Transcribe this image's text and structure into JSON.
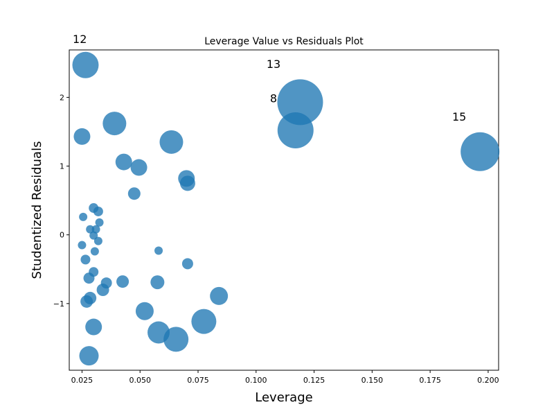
{
  "chart_data": {
    "type": "scatter",
    "title": "Leverage Value vs Residuals Plot",
    "xlabel": "Leverage",
    "ylabel": "Studentized Residuals",
    "xlim": [
      0.0195,
      0.2045
    ],
    "ylim": [
      -1.97,
      2.69
    ],
    "xticks": [
      "0.025",
      "0.050",
      "0.075",
      "0.100",
      "0.125",
      "0.150",
      "0.175",
      "0.200"
    ],
    "yticks": [
      "−1",
      "0",
      "1",
      "2"
    ],
    "marker_color": "#1f77b4",
    "size_encoding": "marker area proportional to influence",
    "points": [
      {
        "x": 0.0265,
        "y": 2.47,
        "s": 19
      },
      {
        "x": 0.119,
        "y": 1.93,
        "s": 33
      },
      {
        "x": 0.117,
        "y": 1.52,
        "s": 26
      },
      {
        "x": 0.1965,
        "y": 1.21,
        "s": 28
      },
      {
        "x": 0.039,
        "y": 1.62,
        "s": 17
      },
      {
        "x": 0.025,
        "y": 1.43,
        "s": 12
      },
      {
        "x": 0.0635,
        "y": 1.35,
        "s": 17
      },
      {
        "x": 0.043,
        "y": 1.06,
        "s": 12
      },
      {
        "x": 0.0495,
        "y": 0.98,
        "s": 12
      },
      {
        "x": 0.07,
        "y": 0.82,
        "s": 12
      },
      {
        "x": 0.0705,
        "y": 0.75,
        "s": 11
      },
      {
        "x": 0.0475,
        "y": 0.6,
        "s": 9
      },
      {
        "x": 0.03,
        "y": 0.39,
        "s": 7
      },
      {
        "x": 0.032,
        "y": 0.34,
        "s": 7
      },
      {
        "x": 0.0255,
        "y": 0.26,
        "s": 6
      },
      {
        "x": 0.0325,
        "y": 0.18,
        "s": 6
      },
      {
        "x": 0.0285,
        "y": 0.08,
        "s": 6
      },
      {
        "x": 0.031,
        "y": 0.08,
        "s": 6
      },
      {
        "x": 0.03,
        "y": -0.01,
        "s": 6
      },
      {
        "x": 0.032,
        "y": -0.09,
        "s": 6
      },
      {
        "x": 0.025,
        "y": -0.15,
        "s": 6
      },
      {
        "x": 0.0305,
        "y": -0.24,
        "s": 6
      },
      {
        "x": 0.058,
        "y": -0.23,
        "s": 6
      },
      {
        "x": 0.0265,
        "y": -0.36,
        "s": 7
      },
      {
        "x": 0.0705,
        "y": -0.42,
        "s": 8
      },
      {
        "x": 0.03,
        "y": -0.54,
        "s": 7
      },
      {
        "x": 0.028,
        "y": -0.63,
        "s": 8
      },
      {
        "x": 0.0355,
        "y": -0.7,
        "s": 8
      },
      {
        "x": 0.0425,
        "y": -0.68,
        "s": 9
      },
      {
        "x": 0.0575,
        "y": -0.69,
        "s": 10
      },
      {
        "x": 0.034,
        "y": -0.8,
        "s": 9
      },
      {
        "x": 0.084,
        "y": -0.89,
        "s": 13
      },
      {
        "x": 0.0285,
        "y": -0.92,
        "s": 9
      },
      {
        "x": 0.027,
        "y": -0.97,
        "s": 9
      },
      {
        "x": 0.052,
        "y": -1.11,
        "s": 13
      },
      {
        "x": 0.0775,
        "y": -1.26,
        "s": 18
      },
      {
        "x": 0.03,
        "y": -1.34,
        "s": 12
      },
      {
        "x": 0.058,
        "y": -1.42,
        "s": 16
      },
      {
        "x": 0.0655,
        "y": -1.52,
        "s": 18
      },
      {
        "x": 0.028,
        "y": -1.76,
        "s": 14
      }
    ],
    "annotations": [
      {
        "text": "12",
        "x": 0.021,
        "y": 2.79
      },
      {
        "text": "13",
        "x": 0.1045,
        "y": 2.43
      },
      {
        "text": "8",
        "x": 0.106,
        "y": 1.93
      },
      {
        "text": "15",
        "x": 0.1845,
        "y": 1.66
      }
    ]
  }
}
